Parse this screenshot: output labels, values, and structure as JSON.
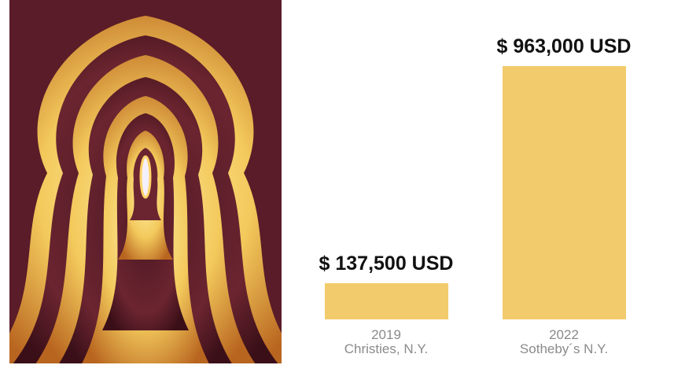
{
  "chart_data": {
    "type": "bar",
    "categories": [
      "2019",
      "2022"
    ],
    "venues": [
      "Christies, N.Y.",
      "Sotheby´s N.Y."
    ],
    "values": [
      137500,
      963000
    ],
    "value_labels": [
      "$ 137,500 USD",
      "$ 963,000 USD"
    ],
    "color": "#f2cb6c"
  }
}
